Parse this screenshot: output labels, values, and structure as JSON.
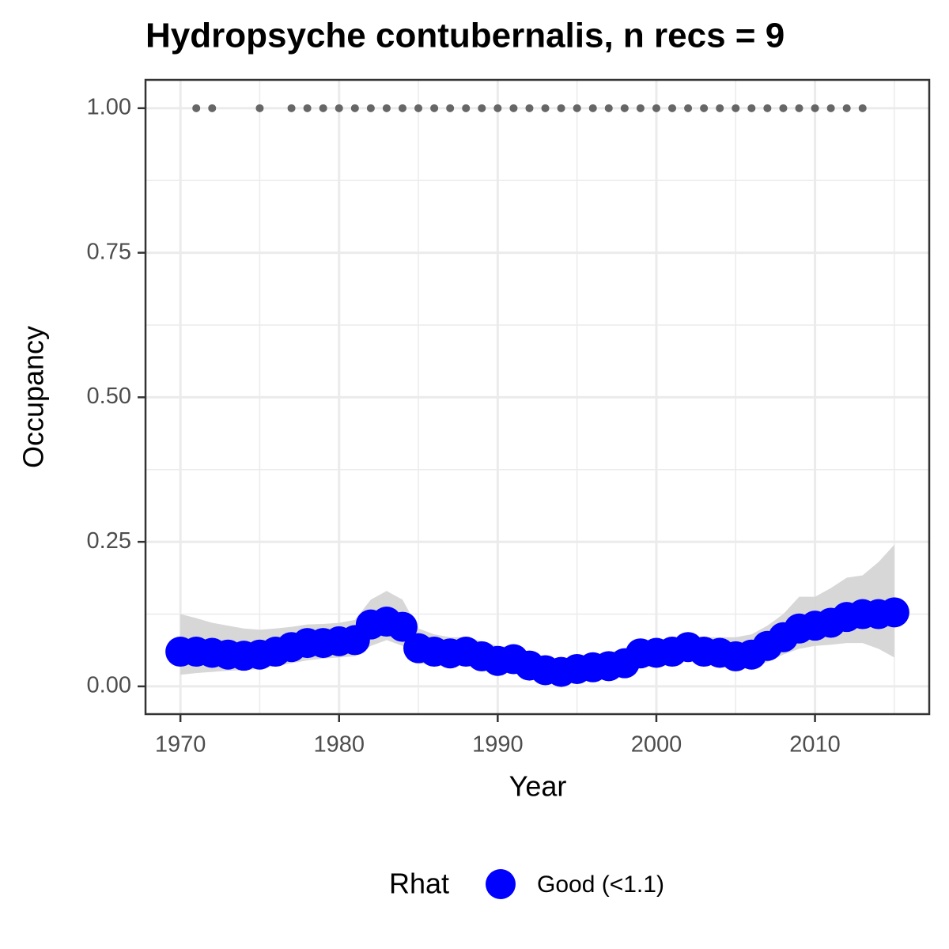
{
  "chart_data": {
    "type": "scatter",
    "title": "Hydropsyche contubernalis, n recs = 9",
    "x_label": "Year",
    "y_label": "Occupancy",
    "xlim": [
      1967.8,
      2017.2
    ],
    "ylim": [
      -0.048,
      1.049
    ],
    "xticks": [
      1970,
      1980,
      1990,
      2000,
      2010
    ],
    "yticks": [
      {
        "value": 0,
        "label": "0.00"
      },
      {
        "value": 0.25,
        "label": "0.25"
      },
      {
        "value": 0.5,
        "label": "0.50"
      },
      {
        "value": 0.75,
        "label": "0.75"
      },
      {
        "value": 1,
        "label": "1.00"
      }
    ],
    "xminor": [
      1975,
      1985,
      1995,
      2005,
      2015
    ],
    "yminor": [
      0.125,
      0.375,
      0.625,
      0.875
    ],
    "grid": true,
    "legend_title": "Rhat",
    "series": [
      {
        "name": "Good (<1.1)",
        "color": "#0000ff",
        "x": [
          1970,
          1971,
          1972,
          1973,
          1974,
          1975,
          1976,
          1977,
          1978,
          1979,
          1980,
          1981,
          1982,
          1983,
          1984,
          1985,
          1986,
          1987,
          1988,
          1989,
          1990,
          1991,
          1992,
          1993,
          1994,
          1995,
          1996,
          1997,
          1998,
          1999,
          2000,
          2001,
          2002,
          2003,
          2004,
          2005,
          2006,
          2007,
          2008,
          2009,
          2010,
          2011,
          2012,
          2013,
          2014,
          2015
        ],
        "values": [
          0.06,
          0.06,
          0.058,
          0.055,
          0.053,
          0.055,
          0.06,
          0.068,
          0.075,
          0.075,
          0.078,
          0.08,
          0.107,
          0.112,
          0.103,
          0.066,
          0.06,
          0.057,
          0.06,
          0.052,
          0.044,
          0.047,
          0.036,
          0.028,
          0.025,
          0.03,
          0.033,
          0.035,
          0.04,
          0.057,
          0.058,
          0.06,
          0.068,
          0.06,
          0.058,
          0.052,
          0.055,
          0.07,
          0.085,
          0.1,
          0.105,
          0.11,
          0.12,
          0.125,
          0.125,
          0.128
        ],
        "lower": [
          0.02,
          0.023,
          0.025,
          0.027,
          0.028,
          0.03,
          0.035,
          0.04,
          0.045,
          0.048,
          0.05,
          0.052,
          0.07,
          0.08,
          0.07,
          0.04,
          0.037,
          0.035,
          0.037,
          0.032,
          0.025,
          0.025,
          0.02,
          0.013,
          0.01,
          0.013,
          0.015,
          0.018,
          0.022,
          0.033,
          0.035,
          0.037,
          0.045,
          0.04,
          0.037,
          0.03,
          0.032,
          0.042,
          0.055,
          0.065,
          0.07,
          0.072,
          0.075,
          0.075,
          0.065,
          0.05
        ],
        "upper": [
          0.125,
          0.118,
          0.11,
          0.105,
          0.1,
          0.098,
          0.1,
          0.103,
          0.107,
          0.108,
          0.11,
          0.115,
          0.15,
          0.165,
          0.15,
          0.1,
          0.09,
          0.085,
          0.085,
          0.078,
          0.07,
          0.068,
          0.058,
          0.05,
          0.048,
          0.052,
          0.055,
          0.058,
          0.065,
          0.078,
          0.08,
          0.082,
          0.088,
          0.085,
          0.085,
          0.085,
          0.09,
          0.105,
          0.125,
          0.155,
          0.155,
          0.17,
          0.188,
          0.192,
          0.215,
          0.245
        ]
      }
    ],
    "ribbon_color": "#d3d3d3",
    "records": {
      "color": "#666666",
      "x": [
        1971,
        1972,
        1975,
        1977,
        1978,
        1979,
        1980,
        1981,
        1982,
        1983,
        1984,
        1985,
        1986,
        1987,
        1988,
        1989,
        1990,
        1991,
        1992,
        1993,
        1994,
        1995,
        1996,
        1997,
        1998,
        1999,
        2000,
        2001,
        2002,
        2003,
        2004,
        2005,
        2006,
        2007,
        2008,
        2009,
        2010,
        2011,
        2012,
        2013
      ],
      "values": [
        1,
        1,
        1,
        1,
        1,
        1,
        1,
        1,
        1,
        1,
        1,
        1,
        1,
        1,
        1,
        1,
        1,
        1,
        1,
        1,
        1,
        1,
        1,
        1,
        1,
        1,
        1,
        1,
        1,
        1,
        1,
        1,
        1,
        1,
        1,
        1,
        1,
        1,
        1,
        1
      ]
    }
  }
}
